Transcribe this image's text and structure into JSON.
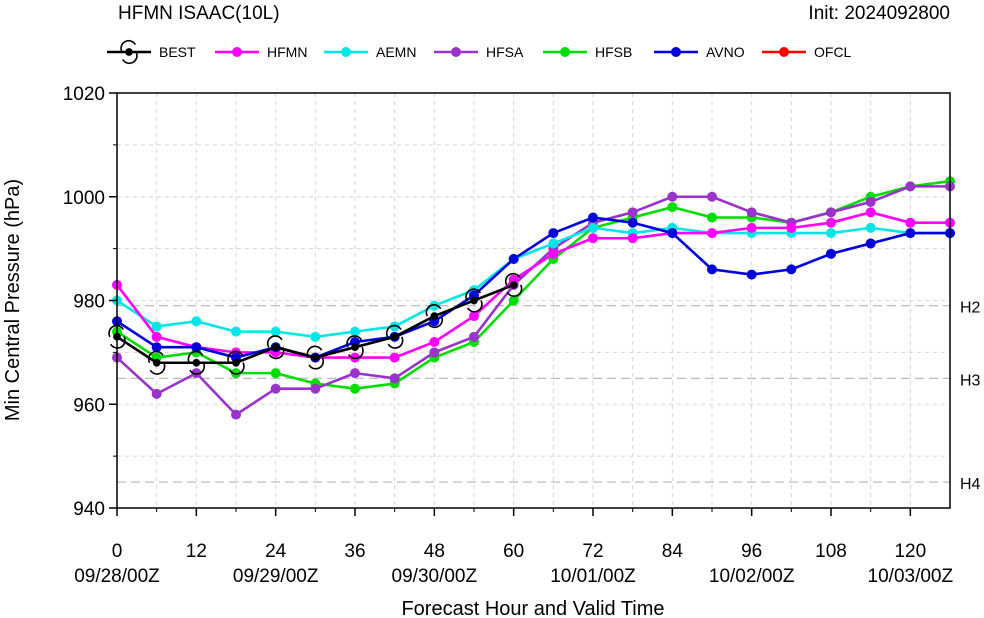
{
  "header": {
    "title": "HFMN ISAAC(10L)",
    "init": "Init: 2024092800"
  },
  "chart_data": {
    "type": "line",
    "xlabel": "Forecast Hour and Valid Time",
    "ylabel": "Min Central Pressure (hPa)",
    "xlim": [
      0,
      126
    ],
    "ylim": [
      940,
      1020
    ],
    "grid": true,
    "legend_position": "top",
    "x_ticks": [
      0,
      12,
      24,
      36,
      48,
      60,
      72,
      84,
      96,
      108,
      120
    ],
    "y_ticks": [
      940,
      960,
      980,
      1000,
      1020
    ],
    "date_labels": [
      {
        "x": 0,
        "label": "09/28/00Z"
      },
      {
        "x": 24,
        "label": "09/29/00Z"
      },
      {
        "x": 48,
        "label": "09/30/00Z"
      },
      {
        "x": 72,
        "label": "10/01/00Z"
      },
      {
        "x": 96,
        "label": "10/02/00Z"
      },
      {
        "x": 120,
        "label": "10/03/00Z"
      }
    ],
    "reference_lines": [
      {
        "label": "H2",
        "y": 979
      },
      {
        "label": "H3",
        "y": 965
      },
      {
        "label": "H4",
        "y": 945
      }
    ],
    "series": [
      {
        "name": "HFMN",
        "color": "#ff00ff",
        "x": [
          0,
          6,
          12,
          18,
          24,
          30,
          36,
          42,
          48,
          54,
          60,
          66,
          72,
          78,
          84,
          90,
          96,
          102,
          108,
          114,
          120,
          126
        ],
        "y": [
          983,
          973,
          971,
          970,
          970,
          969,
          969,
          969,
          972,
          977,
          984,
          989,
          992,
          992,
          993,
          993,
          994,
          994,
          995,
          997,
          995,
          995
        ]
      },
      {
        "name": "AEMN",
        "color": "#00e6e6",
        "x": [
          0,
          6,
          12,
          18,
          24,
          30,
          36,
          42,
          48,
          54,
          60,
          66,
          72,
          78,
          84,
          90,
          96,
          102,
          108,
          114,
          120,
          126
        ],
        "y": [
          980,
          975,
          976,
          974,
          974,
          973,
          974,
          975,
          979,
          982,
          988,
          991,
          994,
          993,
          994,
          993,
          993,
          993,
          993,
          994,
          993,
          993
        ]
      },
      {
        "name": "HFSA",
        "color": "#9933cc",
        "x": [
          0,
          6,
          12,
          18,
          24,
          30,
          36,
          42,
          48,
          54,
          60,
          66,
          72,
          78,
          84,
          90,
          96,
          102,
          108,
          114,
          120,
          126
        ],
        "y": [
          969,
          962,
          966,
          958,
          963,
          963,
          966,
          965,
          970,
          973,
          983,
          990,
          995,
          997,
          1000,
          1000,
          997,
          995,
          997,
          999,
          1002,
          1002
        ]
      },
      {
        "name": "HFSB",
        "color": "#00dd00",
        "x": [
          0,
          6,
          12,
          18,
          24,
          30,
          36,
          42,
          48,
          54,
          60,
          66,
          72,
          78,
          84,
          90,
          96,
          102,
          108,
          114,
          120,
          126
        ],
        "y": [
          974,
          969,
          970,
          966,
          966,
          964,
          963,
          964,
          969,
          972,
          980,
          988,
          994,
          996,
          998,
          996,
          996,
          995,
          997,
          1000,
          1002,
          1003
        ]
      },
      {
        "name": "AVNO",
        "color": "#0000dd",
        "x": [
          0,
          6,
          12,
          18,
          24,
          30,
          36,
          42,
          48,
          54,
          60,
          66,
          72,
          78,
          84,
          90,
          96,
          102,
          108,
          114,
          120,
          126
        ],
        "y": [
          976,
          971,
          971,
          969,
          971,
          969,
          972,
          973,
          976,
          981,
          988,
          993,
          996,
          995,
          993,
          986,
          985,
          986,
          989,
          991,
          993,
          993
        ]
      },
      {
        "name": "OFCL",
        "color": "#ff0000",
        "x": [],
        "y": []
      },
      {
        "name": "BEST",
        "color": "#000000",
        "x": [
          0,
          6,
          12,
          18,
          24,
          30,
          36,
          42,
          48,
          54,
          60
        ],
        "y": [
          973,
          968,
          968,
          968,
          971,
          969,
          971,
          973,
          977,
          980,
          983
        ]
      }
    ]
  }
}
